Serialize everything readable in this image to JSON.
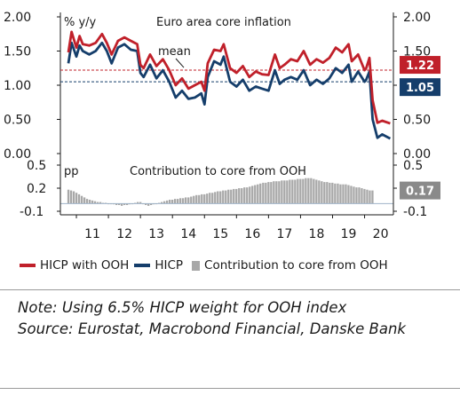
{
  "chart_data": [
    {
      "type": "line",
      "title": "Euro area core inflation",
      "ylabel": "% y/y",
      "ylim": [
        0.0,
        2.0
      ],
      "yticks": [
        "0.00",
        "0.50",
        "1.00",
        "1.50",
        "2.00"
      ],
      "x_range": [
        2010.5,
        2020.9
      ],
      "x_tick_labels": [
        "11",
        "12",
        "13",
        "14",
        "15",
        "16",
        "17",
        "18",
        "19",
        "20"
      ],
      "series": [
        {
          "name": "HICP with OOH",
          "color": "#c0202a",
          "x": [
            2010.75,
            2010.85,
            2011.0,
            2011.1,
            2011.2,
            2011.4,
            2011.6,
            2011.8,
            2011.95,
            2012.1,
            2012.3,
            2012.5,
            2012.7,
            2012.9,
            2013.0,
            2013.1,
            2013.3,
            2013.5,
            2013.7,
            2013.9,
            2014.1,
            2014.3,
            2014.5,
            2014.7,
            2014.9,
            2015.0,
            2015.1,
            2015.3,
            2015.5,
            2015.6,
            2015.8,
            2016.0,
            2016.2,
            2016.4,
            2016.6,
            2016.8,
            2017.0,
            2017.2,
            2017.35,
            2017.5,
            2017.7,
            2017.9,
            2018.1,
            2018.3,
            2018.5,
            2018.7,
            2018.9,
            2019.1,
            2019.3,
            2019.5,
            2019.6,
            2019.8,
            2020.0,
            2020.05,
            2020.15,
            2020.25,
            2020.4,
            2020.55,
            2020.8
          ],
          "values": [
            1.48,
            1.78,
            1.55,
            1.72,
            1.6,
            1.58,
            1.62,
            1.75,
            1.62,
            1.45,
            1.65,
            1.7,
            1.65,
            1.6,
            1.3,
            1.25,
            1.45,
            1.28,
            1.38,
            1.22,
            1.0,
            1.1,
            0.95,
            1.0,
            1.05,
            0.92,
            1.32,
            1.52,
            1.5,
            1.6,
            1.25,
            1.18,
            1.28,
            1.12,
            1.2,
            1.16,
            1.15,
            1.45,
            1.25,
            1.3,
            1.38,
            1.35,
            1.5,
            1.3,
            1.38,
            1.33,
            1.4,
            1.55,
            1.48,
            1.6,
            1.35,
            1.45,
            1.22,
            1.25,
            1.4,
            0.78,
            0.45,
            0.48,
            0.44
          ]
        },
        {
          "name": "HICP",
          "color": "#153e6b",
          "x": [
            2010.75,
            2010.85,
            2011.0,
            2011.1,
            2011.2,
            2011.4,
            2011.6,
            2011.8,
            2011.95,
            2012.1,
            2012.3,
            2012.5,
            2012.7,
            2012.9,
            2013.0,
            2013.1,
            2013.3,
            2013.5,
            2013.7,
            2013.9,
            2014.1,
            2014.3,
            2014.5,
            2014.7,
            2014.9,
            2015.0,
            2015.1,
            2015.3,
            2015.5,
            2015.6,
            2015.8,
            2016.0,
            2016.2,
            2016.4,
            2016.6,
            2016.8,
            2017.0,
            2017.2,
            2017.35,
            2017.5,
            2017.7,
            2017.9,
            2018.1,
            2018.3,
            2018.5,
            2018.7,
            2018.9,
            2019.1,
            2019.3,
            2019.5,
            2019.6,
            2019.8,
            2020.0,
            2020.05,
            2020.15,
            2020.25,
            2020.4,
            2020.55,
            2020.8
          ],
          "values": [
            1.32,
            1.62,
            1.42,
            1.58,
            1.5,
            1.45,
            1.5,
            1.62,
            1.5,
            1.32,
            1.55,
            1.6,
            1.52,
            1.5,
            1.18,
            1.12,
            1.3,
            1.1,
            1.22,
            1.05,
            0.82,
            0.92,
            0.8,
            0.82,
            0.88,
            0.72,
            1.12,
            1.35,
            1.3,
            1.42,
            1.05,
            0.98,
            1.08,
            0.92,
            0.98,
            0.95,
            0.92,
            1.22,
            1.02,
            1.08,
            1.12,
            1.08,
            1.22,
            1.0,
            1.08,
            1.02,
            1.1,
            1.25,
            1.18,
            1.3,
            1.05,
            1.2,
            1.05,
            1.08,
            1.2,
            0.5,
            0.23,
            0.28,
            0.22
          ]
        }
      ],
      "mean_lines": [
        {
          "series": "HICP with OOH",
          "value": 1.22,
          "label": "1.22"
        },
        {
          "series": "HICP",
          "value": 1.05,
          "label": "1.05"
        }
      ],
      "annotation": "mean"
    },
    {
      "type": "bar",
      "title": "Contribution to core from OOH",
      "ylabel": "pp",
      "ylim": [
        -0.1,
        0.5
      ],
      "yticks": [
        "-0.1",
        "0.2",
        "0.5"
      ],
      "series": [
        {
          "name": "Contribution to core from OOH",
          "color": "#a8a8a8",
          "x_start": 2010.75,
          "x_step": 0.0833,
          "values": [
            0.18,
            0.17,
            0.16,
            0.14,
            0.12,
            0.1,
            0.08,
            0.06,
            0.05,
            0.04,
            0.03,
            0.02,
            0.02,
            0.01,
            0.01,
            0.0,
            0.0,
            -0.01,
            -0.02,
            -0.02,
            -0.03,
            -0.02,
            -0.02,
            -0.01,
            0.0,
            0.01,
            0.02,
            0.02,
            0.0,
            -0.02,
            -0.03,
            -0.02,
            -0.01,
            0.0,
            0.01,
            0.02,
            0.03,
            0.04,
            0.05,
            0.05,
            0.06,
            0.06,
            0.07,
            0.07,
            0.08,
            0.08,
            0.09,
            0.1,
            0.11,
            0.11,
            0.12,
            0.12,
            0.13,
            0.14,
            0.14,
            0.15,
            0.16,
            0.16,
            0.17,
            0.17,
            0.18,
            0.18,
            0.19,
            0.19,
            0.2,
            0.2,
            0.21,
            0.21,
            0.22,
            0.23,
            0.24,
            0.25,
            0.26,
            0.27,
            0.27,
            0.28,
            0.28,
            0.29,
            0.29,
            0.29,
            0.3,
            0.3,
            0.3,
            0.31,
            0.31,
            0.31,
            0.32,
            0.32,
            0.32,
            0.33,
            0.33,
            0.33,
            0.32,
            0.31,
            0.3,
            0.29,
            0.28,
            0.28,
            0.27,
            0.27,
            0.26,
            0.26,
            0.25,
            0.25,
            0.25,
            0.24,
            0.23,
            0.22,
            0.21,
            0.21,
            0.2,
            0.19,
            0.18,
            0.17,
            0.17
          ]
        }
      ],
      "last_label": "0.17"
    }
  ],
  "legend": [
    {
      "label": "HICP with OOH",
      "color": "#c0202a",
      "kind": "line"
    },
    {
      "label": "HICP",
      "color": "#153e6b",
      "kind": "line"
    },
    {
      "label": "Contribution to core from OOH",
      "color": "#a8a8a8",
      "kind": "bar"
    }
  ],
  "note": {
    "line1": "Note: Using 6.5% HICP weight for OOH index",
    "line2": "Source: Eurostat, Macrobond Financial, Danske Bank"
  }
}
